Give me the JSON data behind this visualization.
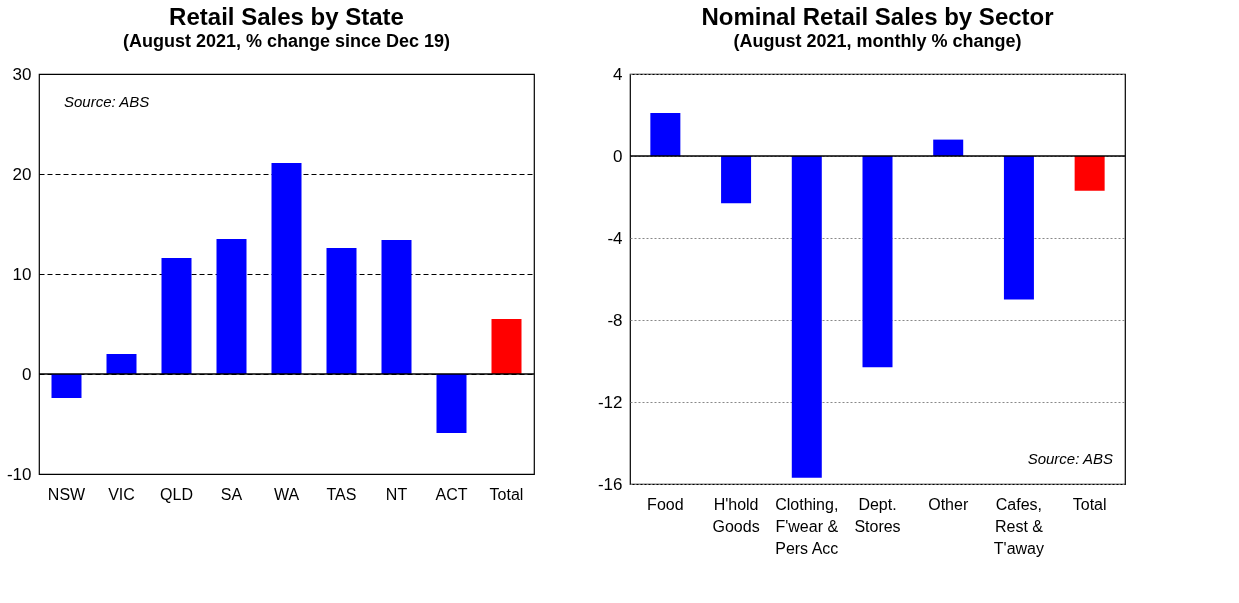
{
  "chart_data": [
    {
      "type": "bar",
      "title": "Retail Sales by State",
      "subtitle": "(August 2021, % change since Dec 19)",
      "categories": [
        "NSW",
        "VIC",
        "QLD",
        "SA",
        "WA",
        "TAS",
        "NT",
        "ACT",
        "Total"
      ],
      "values": [
        -2.4,
        2.0,
        11.6,
        13.5,
        21.1,
        12.6,
        13.4,
        -5.9,
        5.5
      ],
      "colors": [
        "#0000ff",
        "#0000ff",
        "#0000ff",
        "#0000ff",
        "#0000ff",
        "#0000ff",
        "#0000ff",
        "#0000ff",
        "#ff0000"
      ],
      "ylim": [
        -10,
        30
      ],
      "yticks": [
        -10,
        0,
        10,
        20,
        30
      ],
      "grid": "y",
      "ref_lines": [
        {
          "axis": "y",
          "value": 0,
          "label": null
        }
      ],
      "annotations": [
        "Source: ABS"
      ]
    },
    {
      "type": "bar",
      "title": "Nominal Retail Sales by Sector",
      "subtitle": "(August 2021, monthly % change)",
      "categories": [
        "Food",
        "H'hold\nGoods",
        "Clothing,\nF'wear &\nPers Acc",
        "Dept.\nStores",
        "Other",
        "Cafes,\nRest &\nT'away",
        "Total"
      ],
      "values": [
        2.1,
        -2.3,
        -15.7,
        -10.3,
        0.8,
        -7.0,
        -1.7
      ],
      "colors": [
        "#0000ff",
        "#0000ff",
        "#0000ff",
        "#0000ff",
        "#0000ff",
        "#0000ff",
        "#ff0000"
      ],
      "ylim": [
        -16,
        4
      ],
      "yticks": [
        -16,
        -12,
        -8,
        -4,
        0,
        4
      ],
      "grid": "y",
      "ref_lines": [
        {
          "axis": "y",
          "value": 0,
          "label": null
        }
      ],
      "annotations": [
        "Source: ABS"
      ]
    }
  ]
}
